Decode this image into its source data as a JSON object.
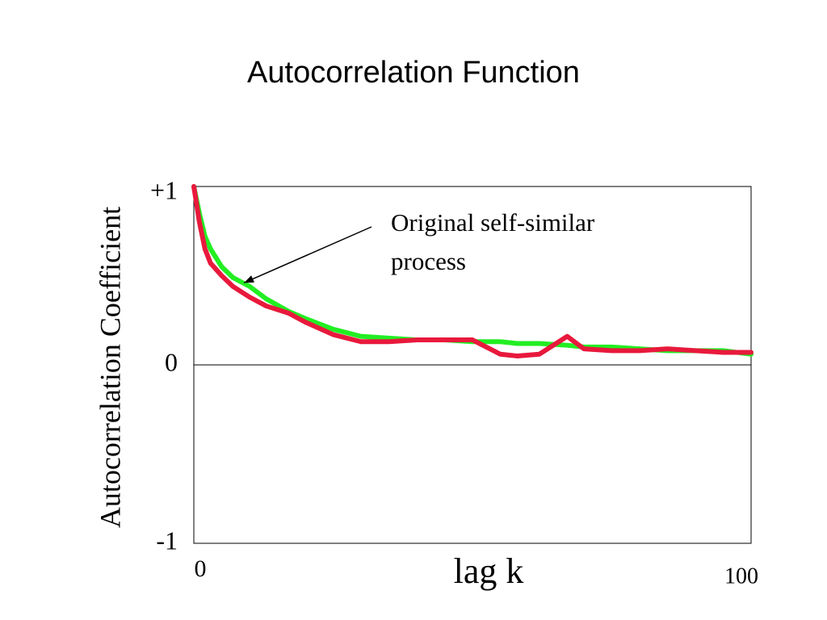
{
  "chart_data": {
    "type": "line",
    "title": "Autocorrelation Function",
    "x_label": "lag k",
    "y_label": "Autocorrelation Coefficient",
    "annotation": {
      "text": "Original self-similar process",
      "x": 9,
      "y": 0.46
    },
    "x": [
      0,
      1,
      2,
      3,
      5,
      7,
      10,
      13,
      17,
      20,
      25,
      30,
      35,
      40,
      45,
      50,
      55,
      58,
      62,
      67,
      70,
      75,
      80,
      85,
      90,
      95,
      100
    ],
    "series": [
      {
        "color": "#22ee22",
        "values": [
          1.0,
          0.85,
          0.72,
          0.65,
          0.55,
          0.49,
          0.44,
          0.37,
          0.3,
          0.26,
          0.2,
          0.16,
          0.15,
          0.14,
          0.14,
          0.13,
          0.13,
          0.12,
          0.12,
          0.11,
          0.1,
          0.1,
          0.09,
          0.08,
          0.08,
          0.08,
          0.06
        ]
      },
      {
        "color": "#e8193c",
        "values": [
          1.0,
          0.8,
          0.65,
          0.57,
          0.5,
          0.44,
          0.38,
          0.33,
          0.29,
          0.24,
          0.17,
          0.13,
          0.13,
          0.14,
          0.14,
          0.14,
          0.06,
          0.05,
          0.06,
          0.16,
          0.09,
          0.08,
          0.08,
          0.09,
          0.08,
          0.07,
          0.07
        ]
      }
    ],
    "xlim": [
      0,
      100
    ],
    "xticks": [
      0,
      100
    ],
    "ylim": [
      -1,
      1
    ],
    "yticks": [
      {
        "value": 1,
        "label": "+1"
      },
      0,
      -1
    ]
  }
}
